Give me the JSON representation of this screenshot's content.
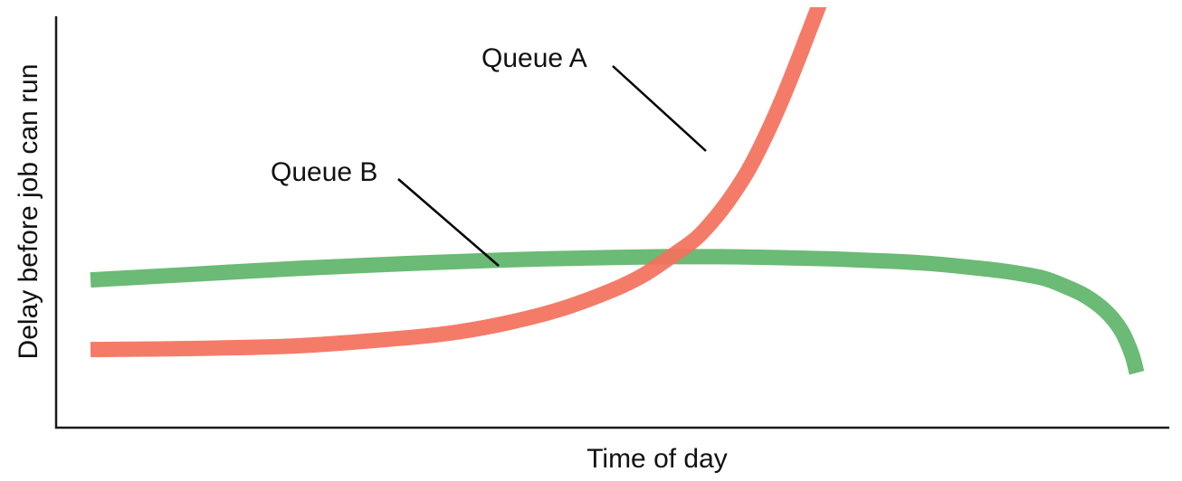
{
  "chart_data": {
    "type": "line",
    "title": "",
    "xlabel": "Time of day",
    "ylabel": "Delay before job can run",
    "xlim": [
      0,
      100
    ],
    "ylim": [
      0,
      100
    ],
    "grid": false,
    "legend": "none",
    "x_ticks_shown": false,
    "y_ticks_shown": false,
    "annotations": [
      "Queue A",
      "Queue B"
    ],
    "series": [
      {
        "name": "Queue A",
        "color": "#f4705c",
        "x": [
          0,
          10,
          20,
          30,
          35,
          40,
          45,
          50,
          53,
          56,
          58,
          60,
          61.5,
          63,
          64.5,
          66,
          67.5,
          68.5,
          69.5,
          70.5
        ],
        "y": [
          12,
          12.3,
          13,
          15,
          16.5,
          19,
          22.5,
          27.5,
          31.5,
          37,
          41,
          47,
          52.5,
          59,
          67,
          76,
          86,
          93,
          100,
          107
        ]
      },
      {
        "name": "Queue B",
        "color": "#5eb469",
        "x": [
          0,
          10,
          20,
          30,
          40,
          50,
          55,
          60,
          65,
          70,
          75,
          80,
          85,
          88,
          91,
          93,
          95,
          97,
          98.5,
          99.5,
          100
        ],
        "y": [
          30,
          31.5,
          33,
          34.2,
          35.2,
          35.8,
          36,
          36,
          35.8,
          35.5,
          35,
          34.3,
          33,
          32,
          30.5,
          28.5,
          26,
          22,
          17,
          11,
          6
        ]
      }
    ]
  }
}
